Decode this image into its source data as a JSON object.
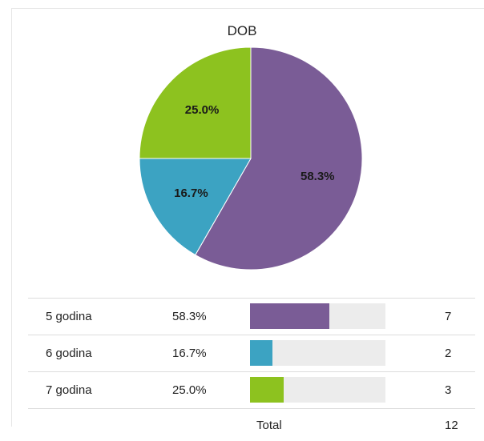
{
  "chart_data": {
    "type": "pie",
    "title": "DOB",
    "categories": [
      "5 godina",
      "6 godina",
      "7 godina"
    ],
    "values": [
      58.3,
      16.7,
      25.0
    ],
    "labels": [
      "58.3%",
      "16.7%",
      "25.0%"
    ],
    "counts": [
      7,
      2,
      3
    ],
    "colors": [
      "#7a5c96",
      "#3ca3c2",
      "#8dc21f"
    ]
  },
  "table": {
    "rows": [
      {
        "name": "5 godina",
        "pct": "58.3%",
        "count": "7",
        "fraction": 0.583,
        "color": "#7a5c96"
      },
      {
        "name": "6 godina",
        "pct": "16.7%",
        "count": "2",
        "fraction": 0.167,
        "color": "#3ca3c2"
      },
      {
        "name": "7 godina",
        "pct": "25.0%",
        "count": "3",
        "fraction": 0.25,
        "color": "#8dc21f"
      }
    ],
    "total_label": "Total",
    "total_value": "12"
  }
}
